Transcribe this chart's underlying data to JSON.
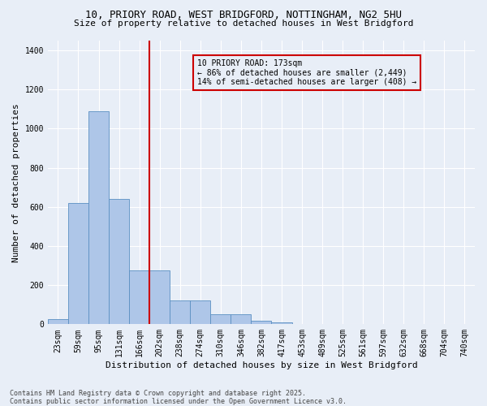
{
  "title_line1": "10, PRIORY ROAD, WEST BRIDGFORD, NOTTINGHAM, NG2 5HU",
  "title_line2": "Size of property relative to detached houses in West Bridgford",
  "xlabel": "Distribution of detached houses by size in West Bridgford",
  "ylabel": "Number of detached properties",
  "footnote": "Contains HM Land Registry data © Crown copyright and database right 2025.\nContains public sector information licensed under the Open Government Licence v3.0.",
  "bin_labels": [
    "23sqm",
    "59sqm",
    "95sqm",
    "131sqm",
    "166sqm",
    "202sqm",
    "238sqm",
    "274sqm",
    "310sqm",
    "346sqm",
    "382sqm",
    "417sqm",
    "453sqm",
    "489sqm",
    "525sqm",
    "561sqm",
    "597sqm",
    "632sqm",
    "668sqm",
    "704sqm",
    "740sqm"
  ],
  "bar_values": [
    25,
    620,
    1090,
    640,
    275,
    275,
    120,
    120,
    50,
    50,
    20,
    10,
    0,
    0,
    0,
    0,
    0,
    0,
    0,
    0,
    0
  ],
  "bar_color": "#aec6e8",
  "bar_edge_color": "#5a8fc2",
  "bg_color": "#e8eef7",
  "grid_color": "#ffffff",
  "vline_color": "#cc0000",
  "annotation_text": "10 PRIORY ROAD: 173sqm\n← 86% of detached houses are smaller (2,449)\n14% of semi-detached houses are larger (408) →",
  "annotation_box_color": "#cc0000",
  "ylim": [
    0,
    1450
  ],
  "yticks": [
    0,
    200,
    400,
    600,
    800,
    1000,
    1200,
    1400
  ],
  "title_fontsize": 9,
  "subtitle_fontsize": 8,
  "tick_fontsize": 7,
  "ylabel_fontsize": 8,
  "xlabel_fontsize": 8,
  "footnote_fontsize": 6,
  "ann_fontsize": 7
}
